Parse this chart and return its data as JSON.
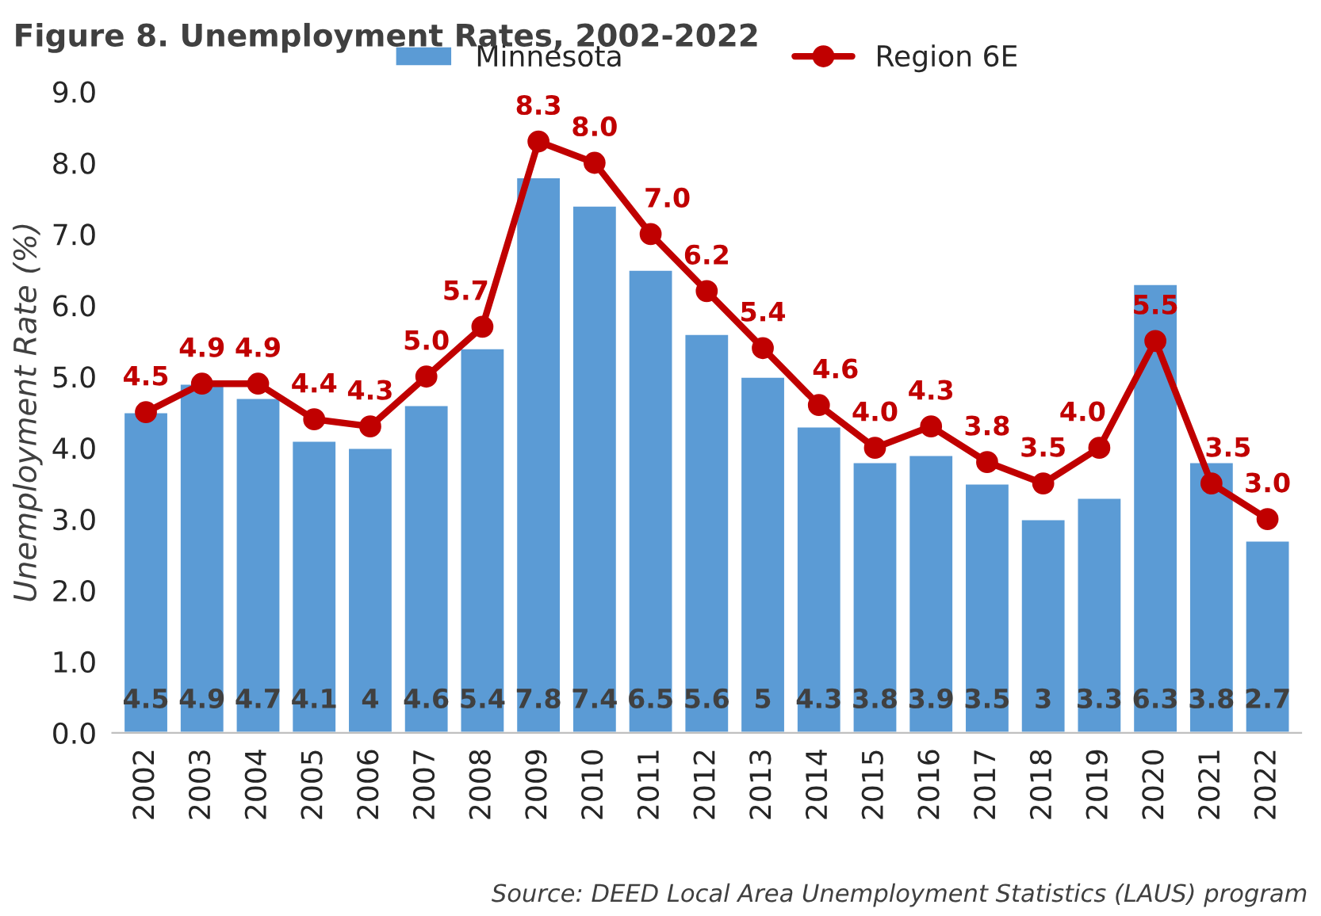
{
  "chart_data": {
    "type": "bar",
    "title": "Figure 8. Unemployment Rates, 2002-2022",
    "ylabel": "Unemployment Rate (%)",
    "categories": [
      "2002",
      "2003",
      "2004",
      "2005",
      "2006",
      "2007",
      "2008",
      "2009",
      "2010",
      "2011",
      "2012",
      "2013",
      "2014",
      "2015",
      "2016",
      "2017",
      "2018",
      "2019",
      "2020",
      "2021",
      "2022"
    ],
    "series": [
      {
        "name": "Minnesota",
        "color": "#5b9bd5",
        "values": [
          4.5,
          4.9,
          4.7,
          4.1,
          4,
          4.6,
          5.4,
          7.8,
          7.4,
          6.5,
          5.6,
          5,
          4.3,
          3.8,
          3.9,
          3.5,
          3,
          3.3,
          6.3,
          3.8,
          2.7
        ],
        "value_labels": [
          "4.5",
          "4.9",
          "4.7",
          "4.1",
          "4",
          "4.6",
          "5.4",
          "7.8",
          "7.4",
          "6.5",
          "5.6",
          "5",
          "4.3",
          "3.8",
          "3.9",
          "3.5",
          "3",
          "3.3",
          "6.3",
          "3.8",
          "2.7"
        ]
      },
      {
        "name": "Region 6E",
        "type": "line",
        "color": "#c00000",
        "marker": "circle",
        "line_style": "solid",
        "values": [
          4.5,
          4.9,
          4.9,
          4.4,
          4.3,
          5.0,
          5.7,
          8.3,
          8.0,
          7.0,
          6.2,
          5.4,
          4.6,
          4.0,
          4.3,
          3.8,
          3.5,
          4.0,
          5.5,
          3.5,
          3.0
        ],
        "value_labels": [
          "4.5",
          "4.9",
          "4.9",
          "4.4",
          "4.3",
          "5.0",
          "5.7",
          "8.3",
          "8.0",
          "7.0",
          "6.2",
          "5.4",
          "4.6",
          "4.0",
          "4.3",
          "3.8",
          "3.5",
          "4.0",
          "5.5",
          "3.5",
          "3.0"
        ]
      }
    ],
    "ylim": [
      0,
      9
    ],
    "yticks": [
      {
        "value": 0,
        "label": "0.0"
      },
      {
        "value": 1,
        "label": "1.0"
      },
      {
        "value": 2,
        "label": "2.0"
      },
      {
        "value": 3,
        "label": "3.0"
      },
      {
        "value": 4,
        "label": "4.0"
      },
      {
        "value": 5,
        "label": "5.0"
      },
      {
        "value": 6,
        "label": "6.0"
      },
      {
        "value": 7,
        "label": "7.0"
      },
      {
        "value": 8,
        "label": "8.0"
      },
      {
        "value": 9,
        "label": "9.0"
      }
    ],
    "grid": false,
    "legend": "top",
    "annotations": [
      "Source: DEED Local Area Unemployment Statistics (LAUS) program"
    ]
  }
}
